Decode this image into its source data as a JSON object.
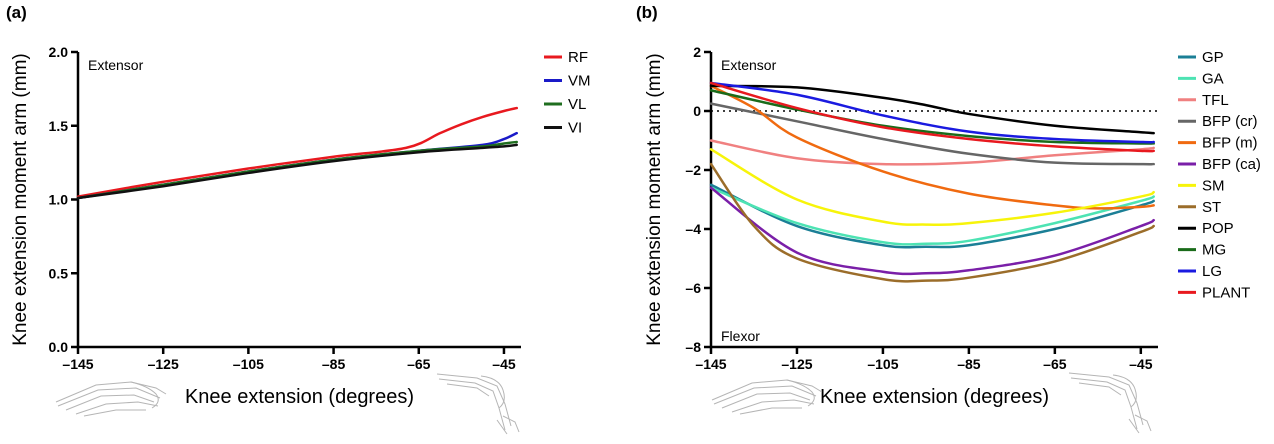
{
  "chart_data": [
    {
      "panel_label": "(a)",
      "type": "line",
      "xlabel": "Knee extension (degrees)",
      "ylabel": "Knee extension moment arm (mm)",
      "xlim": [
        -145,
        -41
      ],
      "ylim": [
        0,
        2.0
      ],
      "xticks": [
        -145,
        -125,
        -105,
        -85,
        -65,
        -45
      ],
      "xtick_labels": [
        "–145",
        "–125",
        "–105",
        "–85",
        "–65",
        "–45"
      ],
      "yticks": [
        0.0,
        0.5,
        1.0,
        1.5,
        2.0
      ],
      "ytick_labels": [
        "0.0",
        "0.5",
        "1.0",
        "1.5",
        "2.0"
      ],
      "annotations": {
        "top": "Extensor"
      },
      "legend_position": "top-right",
      "grid": false,
      "series": [
        {
          "name": "RF",
          "color": "#e8191f",
          "x": [
            -145,
            -125,
            -105,
            -85,
            -68,
            -60,
            -55,
            -50,
            -45,
            -42
          ],
          "y": [
            1.02,
            1.12,
            1.21,
            1.29,
            1.35,
            1.45,
            1.51,
            1.56,
            1.6,
            1.62
          ]
        },
        {
          "name": "VM",
          "color": "#1a1ac8",
          "x": [
            -145,
            -125,
            -105,
            -85,
            -65,
            -50,
            -45,
            -42
          ],
          "y": [
            1.01,
            1.1,
            1.19,
            1.27,
            1.33,
            1.37,
            1.41,
            1.45
          ]
        },
        {
          "name": "VL",
          "color": "#1f6e1f",
          "x": [
            -145,
            -125,
            -105,
            -85,
            -65,
            -50,
            -45,
            -42
          ],
          "y": [
            1.01,
            1.1,
            1.19,
            1.27,
            1.33,
            1.36,
            1.38,
            1.39
          ]
        },
        {
          "name": "VI",
          "color": "#111111",
          "x": [
            -145,
            -125,
            -105,
            -85,
            -65,
            -50,
            -45,
            -42
          ],
          "y": [
            1.01,
            1.09,
            1.18,
            1.26,
            1.32,
            1.35,
            1.36,
            1.37
          ]
        }
      ]
    },
    {
      "panel_label": "(b)",
      "type": "line",
      "xlabel": "Knee extension (degrees)",
      "ylabel": "Knee extension moment arm (mm)",
      "xlim": [
        -145,
        -41
      ],
      "ylim": [
        -8,
        2
      ],
      "xticks": [
        -145,
        -125,
        -105,
        -85,
        -65,
        -45
      ],
      "xtick_labels": [
        "–145",
        "–125",
        "–105",
        "–85",
        "–65",
        "–45"
      ],
      "yticks": [
        -8,
        -6,
        -4,
        -2,
        0,
        2
      ],
      "ytick_labels": [
        "–8",
        "–6",
        "–4",
        "–2",
        "0",
        "2"
      ],
      "annotations": {
        "top": "Extensor",
        "bottom": "Flexor"
      },
      "reference_line_y": 0,
      "legend_position": "right",
      "grid": false,
      "series": [
        {
          "name": "GP",
          "color": "#1b7f96",
          "x": [
            -145,
            -125,
            -105,
            -95,
            -85,
            -65,
            -45,
            -42
          ],
          "y": [
            -2.5,
            -3.9,
            -4.55,
            -4.6,
            -4.55,
            -4.0,
            -3.2,
            -3.05
          ]
        },
        {
          "name": "GA",
          "color": "#4de3b3",
          "x": [
            -145,
            -125,
            -105,
            -95,
            -85,
            -65,
            -45,
            -42
          ],
          "y": [
            -2.6,
            -3.8,
            -4.45,
            -4.5,
            -4.4,
            -3.8,
            -3.05,
            -2.9
          ]
        },
        {
          "name": "TFL",
          "color": "#f08080",
          "x": [
            -145,
            -125,
            -105,
            -85,
            -65,
            -45,
            -42
          ],
          "y": [
            -1.0,
            -1.6,
            -1.8,
            -1.75,
            -1.5,
            -1.3,
            -1.25
          ]
        },
        {
          "name": "BFP (cr)",
          "color": "#666666",
          "x": [
            -145,
            -125,
            -105,
            -85,
            -65,
            -45,
            -42
          ],
          "y": [
            0.25,
            -0.35,
            -0.95,
            -1.45,
            -1.75,
            -1.8,
            -1.8
          ]
        },
        {
          "name": "BFP (m)",
          "color": "#f06a10",
          "x": [
            -145,
            -135,
            -125,
            -105,
            -85,
            -65,
            -55,
            -45,
            -42
          ],
          "y": [
            0.85,
            0.1,
            -0.9,
            -2.05,
            -2.8,
            -3.2,
            -3.3,
            -3.25,
            -3.2
          ]
        },
        {
          "name": "BFP (ca)",
          "color": "#7a1fa8",
          "x": [
            -145,
            -125,
            -105,
            -95,
            -85,
            -65,
            -45,
            -42
          ],
          "y": [
            -2.6,
            -4.8,
            -5.45,
            -5.5,
            -5.4,
            -4.9,
            -3.9,
            -3.7
          ]
        },
        {
          "name": "SM",
          "color": "#f7f40a",
          "x": [
            -145,
            -125,
            -105,
            -95,
            -85,
            -65,
            -45,
            -42
          ],
          "y": [
            -1.3,
            -3.0,
            -3.75,
            -3.85,
            -3.8,
            -3.45,
            -2.9,
            -2.75
          ]
        },
        {
          "name": "ST",
          "color": "#9b6d2a",
          "x": [
            -145,
            -135,
            -125,
            -105,
            -95,
            -85,
            -65,
            -45,
            -42
          ],
          "y": [
            -1.8,
            -3.9,
            -5.0,
            -5.7,
            -5.75,
            -5.65,
            -5.1,
            -4.1,
            -3.9
          ]
        },
        {
          "name": "POP",
          "color": "#000000",
          "x": [
            -145,
            -125,
            -105,
            -95,
            -85,
            -65,
            -45,
            -42
          ],
          "y": [
            0.85,
            0.8,
            0.45,
            0.2,
            -0.1,
            -0.5,
            -0.72,
            -0.75
          ]
        },
        {
          "name": "MG",
          "color": "#1a6b1a",
          "x": [
            -145,
            -125,
            -105,
            -85,
            -65,
            -45,
            -42
          ],
          "y": [
            0.7,
            0.05,
            -0.5,
            -0.85,
            -1.05,
            -1.1,
            -1.1
          ]
        },
        {
          "name": "LG",
          "color": "#1a1ae0",
          "x": [
            -145,
            -125,
            -105,
            -85,
            -65,
            -45,
            -42
          ],
          "y": [
            0.95,
            0.55,
            -0.15,
            -0.7,
            -0.95,
            -1.05,
            -1.05
          ]
        },
        {
          "name": "PLANT",
          "color": "#e8191f",
          "x": [
            -145,
            -125,
            -105,
            -85,
            -65,
            -45,
            -42
          ],
          "y": [
            0.95,
            0.1,
            -0.55,
            -0.95,
            -1.2,
            -1.35,
            -1.35
          ]
        }
      ]
    }
  ]
}
